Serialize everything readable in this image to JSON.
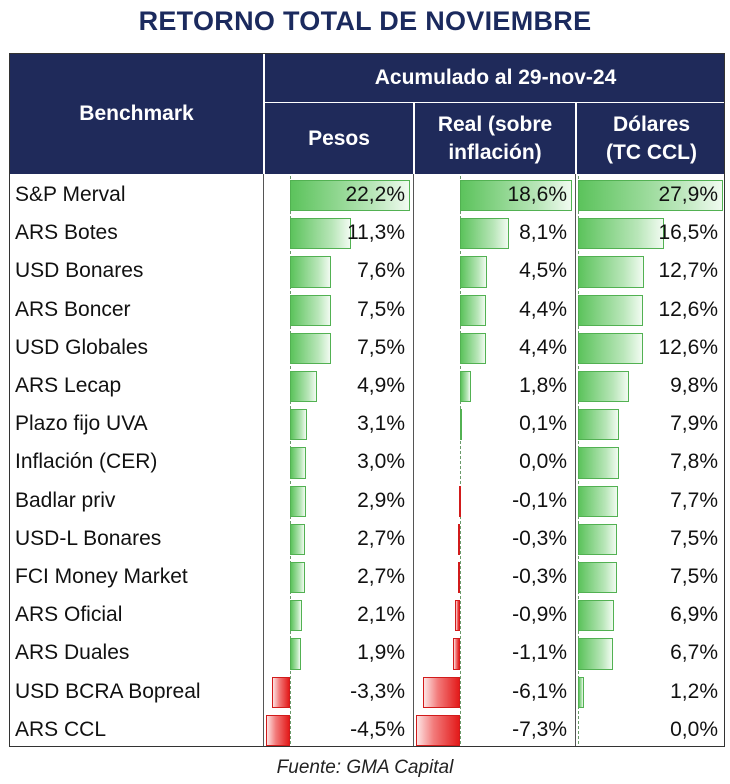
{
  "title": "RETORNO TOTAL DE NOVIEMBRE",
  "source": "Fuente: GMA Capital",
  "header": {
    "benchmark": "Benchmark",
    "group": "Acumulado al 29-nov-24",
    "col_pesos": "Pesos",
    "col_real_1": "Real (sobre",
    "col_real_2": "inflación)",
    "col_usd_1": "Dólares",
    "col_usd_2": "(TC CCL)"
  },
  "colors": {
    "header_bg": "#1f2a5a",
    "positive_bar": "#5cc35c",
    "negative_bar": "#e31b1b",
    "title": "#1b2a5e"
  },
  "chart_data": {
    "type": "table",
    "title": "RETORNO TOTAL DE NOVIEMBRE",
    "columns": [
      "Pesos",
      "Real (sobre inflación)",
      "Dólares (TC CCL)"
    ],
    "unit": "%",
    "rows": [
      {
        "name": "S&P Merval",
        "values": [
          22.2,
          18.6,
          27.9
        ],
        "labels": [
          "22,2%",
          "18,6%",
          "27,9%"
        ]
      },
      {
        "name": "ARS Botes",
        "values": [
          11.3,
          8.1,
          16.5
        ],
        "labels": [
          "11,3%",
          "8,1%",
          "16,5%"
        ]
      },
      {
        "name": "USD Bonares",
        "values": [
          7.6,
          4.5,
          12.7
        ],
        "labels": [
          "7,6%",
          "4,5%",
          "12,7%"
        ]
      },
      {
        "name": "ARS Boncer",
        "values": [
          7.5,
          4.4,
          12.6
        ],
        "labels": [
          "7,5%",
          "4,4%",
          "12,6%"
        ]
      },
      {
        "name": "USD Globales",
        "values": [
          7.5,
          4.4,
          12.6
        ],
        "labels": [
          "7,5%",
          "4,4%",
          "12,6%"
        ]
      },
      {
        "name": "ARS Lecap",
        "values": [
          4.9,
          1.8,
          9.8
        ],
        "labels": [
          "4,9%",
          "1,8%",
          "9,8%"
        ]
      },
      {
        "name": "Plazo fijo UVA",
        "values": [
          3.1,
          0.1,
          7.9
        ],
        "labels": [
          "3,1%",
          "0,1%",
          "7,9%"
        ]
      },
      {
        "name": "Inflación (CER)",
        "values": [
          3.0,
          0.0,
          7.8
        ],
        "labels": [
          "3,0%",
          "0,0%",
          "7,8%"
        ]
      },
      {
        "name": "Badlar priv",
        "values": [
          2.9,
          -0.1,
          7.7
        ],
        "labels": [
          "2,9%",
          "-0,1%",
          "7,7%"
        ]
      },
      {
        "name": "USD-L Bonares",
        "values": [
          2.7,
          -0.3,
          7.5
        ],
        "labels": [
          "2,7%",
          "-0,3%",
          "7,5%"
        ]
      },
      {
        "name": "FCI Money Market",
        "values": [
          2.7,
          -0.3,
          7.5
        ],
        "labels": [
          "2,7%",
          "-0,3%",
          "7,5%"
        ]
      },
      {
        "name": "ARS Oficial",
        "values": [
          2.1,
          -0.9,
          6.9
        ],
        "labels": [
          "2,1%",
          "-0,9%",
          "6,9%"
        ]
      },
      {
        "name": "ARS Duales",
        "values": [
          1.9,
          -1.1,
          6.7
        ],
        "labels": [
          "1,9%",
          "-1,1%",
          "6,7%"
        ]
      },
      {
        "name": "USD BCRA Bopreal",
        "values": [
          -3.3,
          -6.1,
          1.2
        ],
        "labels": [
          "-3,3%",
          "-6,1%",
          "1,2%"
        ]
      },
      {
        "name": "ARS CCL",
        "values": [
          -4.5,
          -7.3,
          0.0
        ],
        "labels": [
          "-4,5%",
          "-7,3%",
          "0,0%"
        ]
      }
    ]
  }
}
